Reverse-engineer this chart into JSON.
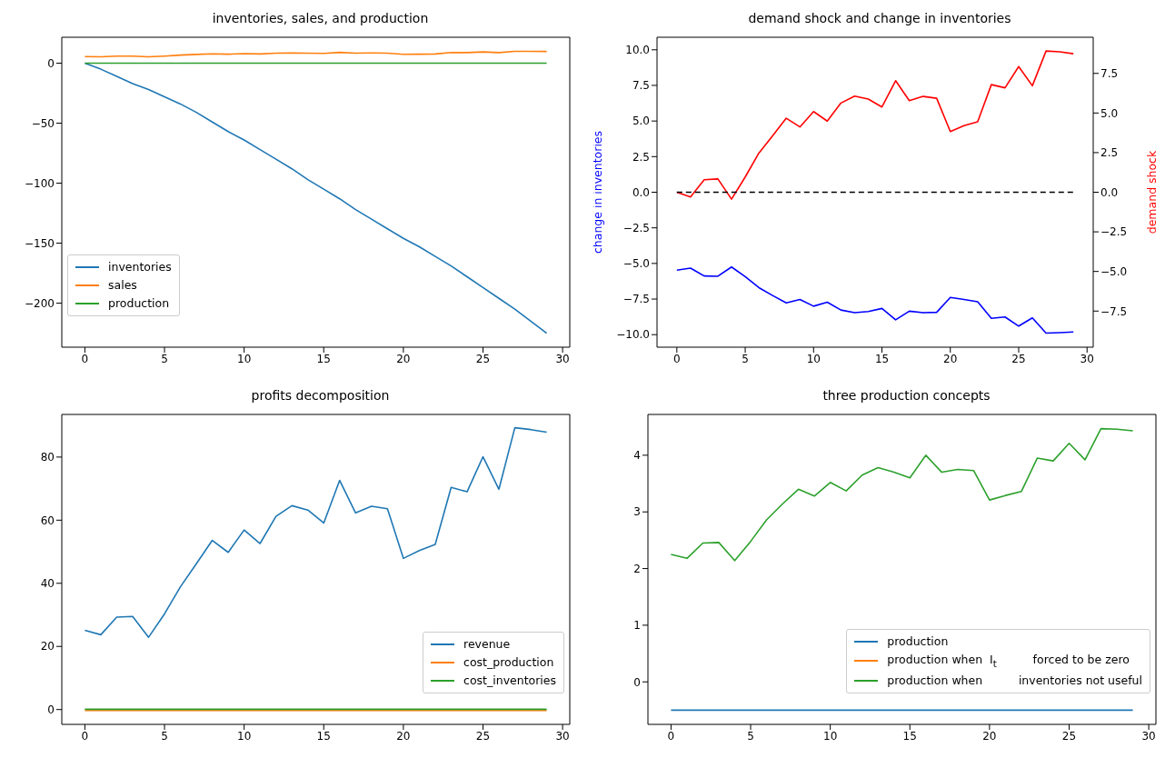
{
  "chart_data": [
    {
      "type": "line",
      "title": "inventories, sales, and production",
      "x": [
        0,
        1,
        2,
        3,
        4,
        5,
        6,
        7,
        8,
        9,
        10,
        11,
        12,
        13,
        14,
        15,
        16,
        17,
        18,
        19,
        20,
        21,
        22,
        23,
        24,
        25,
        26,
        27,
        28,
        29
      ],
      "xlim": [
        -1.45,
        30.45
      ],
      "xticks": [
        0,
        5,
        10,
        15,
        20,
        25,
        30
      ],
      "ylim": [
        -236.7,
        21.6
      ],
      "yticks": [
        {
          "value": -200,
          "label": "−200"
        },
        {
          "value": -150,
          "label": "−150"
        },
        {
          "value": -100,
          "label": "−100"
        },
        {
          "value": -50,
          "label": "−50"
        },
        0
      ],
      "legend": "bottom left",
      "series": [
        {
          "name": "inventories",
          "color": "#1f77b4",
          "values": [
            0,
            -5,
            -11,
            -17,
            -22,
            -28,
            -34,
            -41,
            -49,
            -57,
            -64,
            -72,
            -80,
            -88,
            -97,
            -105,
            -113,
            -122,
            -130,
            -138,
            -146,
            -153,
            -161,
            -169,
            -178,
            -187,
            -196,
            -205,
            -215,
            -225
          ]
        },
        {
          "name": "sales",
          "color": "#ff7f0e",
          "values": [
            5.5,
            5.3,
            5.9,
            5.9,
            5.3,
            5.9,
            6.7,
            7.3,
            7.8,
            7.5,
            8.0,
            7.7,
            8.3,
            8.5,
            8.4,
            8.2,
            9.0,
            8.4,
            8.5,
            8.4,
            7.4,
            7.5,
            7.7,
            8.9,
            8.8,
            9.4,
            8.8,
            9.9,
            9.9,
            9.8
          ]
        },
        {
          "name": "production",
          "color": "#2ca02c",
          "values": [
            0,
            0,
            0,
            0,
            0,
            0,
            0,
            0,
            0,
            0,
            0,
            0,
            0,
            0,
            0,
            0,
            0,
            0,
            0,
            0,
            0,
            0,
            0,
            0,
            0,
            0,
            0,
            0,
            0,
            0
          ]
        }
      ]
    },
    {
      "type": "line",
      "title": "demand shock and change in inventories",
      "ylabel": "change in inventories",
      "y2label": "demand shock",
      "x": [
        0,
        1,
        2,
        3,
        4,
        5,
        6,
        7,
        8,
        9,
        10,
        11,
        12,
        13,
        14,
        15,
        16,
        17,
        18,
        19,
        20,
        21,
        22,
        23,
        24,
        25,
        26,
        27,
        28,
        29
      ],
      "xlim": [
        -1.45,
        30.45
      ],
      "xticks": [
        0,
        5,
        10,
        15,
        20,
        25,
        30
      ],
      "ylim": [
        -10.88,
        10.88
      ],
      "yticks": [
        {
          "value": -10,
          "label": "−10.0"
        },
        {
          "value": -7.5,
          "label": "−7.5"
        },
        {
          "value": -5,
          "label": "−5.0"
        },
        {
          "value": -2.5,
          "label": "−2.5"
        },
        {
          "value": 0,
          "label": "0.0"
        },
        {
          "value": 2.5,
          "label": "2.5"
        },
        {
          "value": 5,
          "label": "5.0"
        },
        {
          "value": 7.5,
          "label": "7.5"
        },
        {
          "value": 10,
          "label": "10.0"
        }
      ],
      "y2lim": [
        -9.78,
        9.78
      ],
      "y2ticks": [
        {
          "value": -7.5,
          "label": "−7.5"
        },
        {
          "value": -5,
          "label": "−5.0"
        },
        {
          "value": -2.5,
          "label": "−2.5"
        },
        {
          "value": 0,
          "label": "0.0"
        },
        {
          "value": 2.5,
          "label": "2.5"
        },
        {
          "value": 5,
          "label": "5.0"
        },
        {
          "value": 7.5,
          "label": "7.5"
        }
      ],
      "series": [
        {
          "color": "#0000ff",
          "axis": "y",
          "values": [
            -5.47,
            -5.33,
            -5.88,
            -5.9,
            -5.25,
            -5.93,
            -6.7,
            -7.25,
            -7.77,
            -7.53,
            -8.0,
            -7.72,
            -8.27,
            -8.46,
            -8.38,
            -8.16,
            -8.96,
            -8.35,
            -8.46,
            -8.43,
            -7.39,
            -7.53,
            -7.69,
            -8.85,
            -8.76,
            -9.4,
            -8.82,
            -9.89,
            -9.86,
            -9.81
          ]
        },
        {
          "color": "#ff0000",
          "axis": "y2",
          "values": [
            0,
            -0.3,
            0.79,
            0.84,
            -0.44,
            0.96,
            2.47,
            3.56,
            4.67,
            4.12,
            5.09,
            4.49,
            5.63,
            6.07,
            5.88,
            5.38,
            7.04,
            5.78,
            6.05,
            5.93,
            3.83,
            4.2,
            4.44,
            6.79,
            6.59,
            7.93,
            6.72,
            8.91,
            8.86,
            8.74
          ]
        },
        {
          "color": "#000000",
          "axis": "y",
          "line_style": "dashed",
          "values": [
            0,
            0,
            0,
            0,
            0,
            0,
            0,
            0,
            0,
            0,
            0,
            0,
            0,
            0,
            0,
            0,
            0,
            0,
            0,
            0,
            0,
            0,
            0,
            0,
            0,
            0,
            0,
            0,
            0,
            0
          ]
        }
      ]
    },
    {
      "type": "line",
      "title": "profits decomposition",
      "x": [
        0,
        1,
        2,
        3,
        4,
        5,
        6,
        7,
        8,
        9,
        10,
        11,
        12,
        13,
        14,
        15,
        16,
        17,
        18,
        19,
        20,
        21,
        22,
        23,
        24,
        25,
        26,
        27,
        28,
        29
      ],
      "xlim": [
        -1.45,
        30.45
      ],
      "xticks": [
        0,
        5,
        10,
        15,
        20,
        25,
        30
      ],
      "ylim": [
        -4.7,
        93.5
      ],
      "yticks": [
        0,
        20,
        40,
        60,
        80
      ],
      "legend": "bottom right",
      "series": [
        {
          "name": "revenue",
          "color": "#1f77b4",
          "values": [
            25.1,
            23.7,
            29.3,
            29.5,
            22.9,
            30.3,
            38.9,
            46.2,
            53.6,
            49.8,
            56.9,
            52.6,
            61.2,
            64.6,
            63.2,
            59.1,
            72.6,
            62.3,
            64.4,
            63.6,
            47.9,
            50.4,
            52.3,
            70.4,
            69.0,
            80.1,
            69.8,
            89.3,
            88.7,
            87.9
          ]
        },
        {
          "name": "cost_production",
          "color": "#ff7f0e",
          "values": [
            -0.3,
            -0.3,
            -0.3,
            -0.3,
            -0.3,
            -0.3,
            -0.3,
            -0.3,
            -0.3,
            -0.3,
            -0.3,
            -0.3,
            -0.3,
            -0.3,
            -0.3,
            -0.3,
            -0.3,
            -0.3,
            -0.3,
            -0.3,
            -0.3,
            -0.3,
            -0.3,
            -0.3,
            -0.3,
            -0.3,
            -0.3,
            -0.3,
            -0.3,
            -0.3
          ]
        },
        {
          "name": "cost_inventories",
          "color": "#2ca02c",
          "values": [
            0.1,
            0.1,
            0.1,
            0.1,
            0.1,
            0.1,
            0.1,
            0.1,
            0.1,
            0.1,
            0.1,
            0.1,
            0.1,
            0.1,
            0.1,
            0.1,
            0.1,
            0.1,
            0.1,
            0.1,
            0.1,
            0.1,
            0.1,
            0.1,
            0.1,
            0.1,
            0.1,
            0.1,
            0.1,
            0.1
          ]
        }
      ]
    },
    {
      "type": "line",
      "title": "three production concepts",
      "x": [
        0,
        1,
        2,
        3,
        4,
        5,
        6,
        7,
        8,
        9,
        10,
        11,
        12,
        13,
        14,
        15,
        16,
        17,
        18,
        19,
        20,
        21,
        22,
        23,
        24,
        25,
        26,
        27,
        28,
        29
      ],
      "xlim": [
        -1.45,
        30.45
      ],
      "xticks": [
        0,
        5,
        10,
        15,
        20,
        25,
        30
      ],
      "ylim": [
        -0.75,
        4.72
      ],
      "yticks": [
        0,
        1,
        2,
        3,
        4
      ],
      "legend": "bottom right",
      "series": [
        {
          "name": "production",
          "color": "#1f77b4",
          "values": [
            -0.5,
            -0.5,
            -0.5,
            -0.5,
            -0.5,
            -0.5,
            -0.5,
            -0.5,
            -0.5,
            -0.5,
            -0.5,
            -0.5,
            -0.5,
            -0.5,
            -0.5,
            -0.5,
            -0.5,
            -0.5,
            -0.5,
            -0.5,
            -0.5,
            -0.5,
            -0.5,
            -0.5,
            -0.5,
            -0.5,
            -0.5,
            -0.5,
            -0.5,
            -0.5
          ]
        },
        {
          "name": "production when  I$_{t}$          forced to be zero",
          "color": "#ff7f0e",
          "values": [
            null,
            null,
            null,
            null,
            null,
            null,
            null,
            null,
            null,
            null,
            null,
            null,
            null,
            null,
            null,
            null,
            null,
            null,
            null,
            null,
            null,
            null,
            null,
            null,
            null,
            null,
            null,
            null,
            null,
            null
          ]
        },
        {
          "name": "production when          inventories not useful",
          "color": "#2ca02c",
          "values": [
            2.25,
            2.18,
            2.45,
            2.46,
            2.14,
            2.48,
            2.86,
            3.14,
            3.4,
            3.28,
            3.52,
            3.37,
            3.65,
            3.78,
            3.7,
            3.6,
            4.0,
            3.7,
            3.75,
            3.73,
            3.21,
            3.29,
            3.36,
            3.95,
            3.9,
            4.21,
            3.92,
            4.47,
            4.46,
            4.43
          ]
        }
      ]
    }
  ]
}
